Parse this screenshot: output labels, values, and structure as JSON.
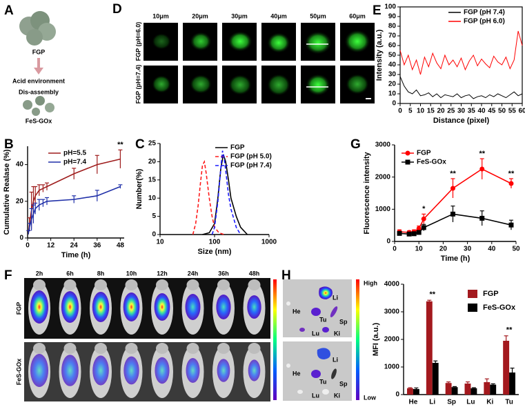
{
  "panel_labels": [
    "A",
    "B",
    "C",
    "D",
    "E",
    "F",
    "G",
    "H"
  ],
  "diagram": {
    "labels": [
      "FGP",
      "Acid environment",
      "Dis-assembly",
      "FeS-GOx"
    ]
  },
  "microscopy": {
    "columns": [
      "10μm",
      "20μm",
      "30μm",
      "40μm",
      "50μm",
      "60μm"
    ],
    "rows": [
      "FGP (pH=6.0)",
      "FGP (pH=7.4)"
    ]
  },
  "imaging": {
    "times": [
      "2h",
      "6h",
      "8h",
      "10h",
      "12h",
      "24h",
      "36h",
      "48h"
    ],
    "rows": [
      "FGP",
      "FeS-GOx"
    ]
  },
  "organs": {
    "top": [
      "Li",
      "He",
      "Tu",
      "Sp",
      "Lu",
      "Ki"
    ],
    "bottom": [
      "Li",
      "He",
      "Tu",
      "Sp",
      "Lu",
      "Ki"
    ],
    "colorbar": [
      "High",
      "Low"
    ]
  },
  "chart_data": [
    {
      "type": "line",
      "x_label": "Time (h)",
      "y_label": "Cumulative Realase (%)",
      "x": [
        0.5,
        1,
        2,
        3,
        4,
        6,
        8,
        10,
        24,
        36,
        48
      ],
      "xlim": [
        0,
        50
      ],
      "xticks": [
        0,
        12,
        24,
        36,
        48
      ],
      "ylim": [
        0,
        50
      ],
      "yticks": [
        0,
        20,
        40
      ],
      "series": [
        {
          "name": "pH=5.5",
          "color": "#9e1b1b",
          "values": [
            3,
            8,
            15,
            20,
            23,
            26,
            27,
            28,
            35,
            40,
            43
          ],
          "errors": [
            1,
            3,
            10,
            8,
            5,
            3,
            2,
            2,
            3,
            5,
            5
          ]
        },
        {
          "name": "pH=7.4",
          "color": "#1f2fa8",
          "values": [
            3,
            6,
            10,
            13,
            16,
            18,
            19,
            20,
            21,
            23,
            28
          ],
          "errors": [
            1,
            2,
            6,
            5,
            3,
            3,
            2,
            2,
            2,
            3,
            1
          ]
        }
      ],
      "annotations": [
        {
          "text": "**",
          "x": 48
        }
      ]
    },
    {
      "type": "line",
      "x_label": "Size (nm)",
      "y_label": "Number(%)",
      "xscale": "log",
      "xlim": [
        10,
        1000
      ],
      "xticks": [
        10,
        100,
        1000
      ],
      "ylim": [
        0,
        25
      ],
      "yticks": [
        0,
        5,
        10,
        15,
        20,
        25
      ],
      "series": [
        {
          "name": "FGP",
          "color": "#000000",
          "x": [
            60,
            80,
            100,
            115,
            130,
            145,
            160,
            180,
            200,
            250,
            300,
            400
          ],
          "values": [
            0,
            0.5,
            3,
            10,
            18,
            22,
            20,
            15,
            10,
            5,
            2,
            0
          ]
        },
        {
          "name": "FGP (pH 5.0)",
          "color": "#ff1a1a",
          "dash": true,
          "x": [
            40,
            45,
            50,
            55,
            60,
            65,
            70,
            80,
            90,
            100,
            120,
            150
          ],
          "values": [
            0,
            3,
            8,
            14,
            19,
            20,
            17,
            10,
            5,
            2,
            0.5,
            0
          ]
        },
        {
          "name": "FGP (pH 7.4)",
          "color": "#1a1aff",
          "dash": true,
          "x": [
            90,
            100,
            115,
            130,
            140,
            150,
            165,
            180,
            200,
            250,
            300
          ],
          "values": [
            0,
            2,
            9,
            18,
            23,
            21,
            16,
            11,
            7,
            2,
            0
          ]
        }
      ]
    },
    {
      "type": "line",
      "x_label": "Distance (pixel)",
      "y_label": "Intensity (a.u.)",
      "frame": true,
      "x": [
        0,
        2,
        4,
        6,
        8,
        10,
        12,
        14,
        16,
        18,
        20,
        22,
        24,
        26,
        28,
        30,
        32,
        34,
        36,
        38,
        40,
        42,
        44,
        46,
        48,
        50,
        52,
        54,
        56,
        58,
        60
      ],
      "xlim": [
        0,
        60
      ],
      "xticks": [
        0,
        5,
        10,
        15,
        20,
        25,
        30,
        35,
        40,
        45,
        50,
        55,
        60
      ],
      "ylim": [
        0,
        100
      ],
      "yticks": [
        0,
        10,
        20,
        30,
        40,
        50,
        60,
        70,
        80,
        90,
        100
      ],
      "series": [
        {
          "name": "FGP (pH 7.4)",
          "color": "#000000",
          "values": [
            28,
            18,
            12,
            10,
            14,
            8,
            9,
            11,
            7,
            10,
            6,
            9,
            8,
            7,
            10,
            6,
            8,
            9,
            5,
            7,
            8,
            6,
            9,
            7,
            10,
            8,
            6,
            9,
            12,
            8,
            10
          ]
        },
        {
          "name": "FGP (pH 6.0)",
          "color": "#ff0000",
          "values": [
            55,
            40,
            50,
            35,
            45,
            30,
            48,
            38,
            52,
            42,
            36,
            50,
            40,
            45,
            38,
            47,
            35,
            44,
            50,
            39,
            46,
            41,
            37,
            49,
            43,
            40,
            48,
            36,
            45,
            75,
            60
          ]
        }
      ]
    },
    {
      "type": "line",
      "x_label": "Time (h)",
      "y_label": "Fluorescence intensity",
      "x": [
        2,
        6,
        8,
        10,
        12,
        24,
        36,
        48
      ],
      "xlim": [
        0,
        50
      ],
      "xticks": [
        0,
        10,
        20,
        30,
        40,
        50
      ],
      "ylim": [
        0,
        3000
      ],
      "yticks": [
        0,
        1000,
        2000,
        3000
      ],
      "series": [
        {
          "name": "FGP",
          "color": "#ff0000",
          "marker": "circle",
          "values": [
            300,
            280,
            300,
            400,
            700,
            1650,
            2250,
            1800
          ],
          "errors": [
            60,
            50,
            60,
            80,
            150,
            300,
            320,
            150
          ]
        },
        {
          "name": "FeS-GOx",
          "color": "#000000",
          "marker": "square",
          "values": [
            250,
            230,
            240,
            280,
            430,
            850,
            720,
            510
          ],
          "errors": [
            40,
            40,
            40,
            60,
            100,
            250,
            230,
            150
          ]
        }
      ],
      "annotations": [
        {
          "text": "*",
          "x": 12
        },
        {
          "text": "**",
          "x": 24
        },
        {
          "text": "**",
          "x": 36
        },
        {
          "text": "**",
          "x": 48
        }
      ]
    },
    {
      "type": "bar",
      "y_label": "MFI (a.u.)",
      "categories": [
        "He",
        "Li",
        "Sp",
        "Lu",
        "Ki",
        "Tu"
      ],
      "ylim": [
        0,
        4000
      ],
      "yticks": [
        0,
        1000,
        2000,
        3000,
        4000
      ],
      "series": [
        {
          "name": "FGP",
          "color": "#a3191e",
          "values": [
            230,
            3380,
            420,
            400,
            450,
            1950
          ],
          "errors": [
            20,
            40,
            40,
            60,
            120,
            180
          ]
        },
        {
          "name": "FeS-GOx",
          "color": "#000000",
          "values": [
            200,
            1150,
            270,
            230,
            360,
            800
          ],
          "errors": [
            40,
            70,
            20,
            20,
            30,
            160
          ]
        }
      ],
      "annotations": [
        {
          "text": "**",
          "category": "Li"
        },
        {
          "text": "**",
          "category": "Tu"
        }
      ]
    }
  ]
}
